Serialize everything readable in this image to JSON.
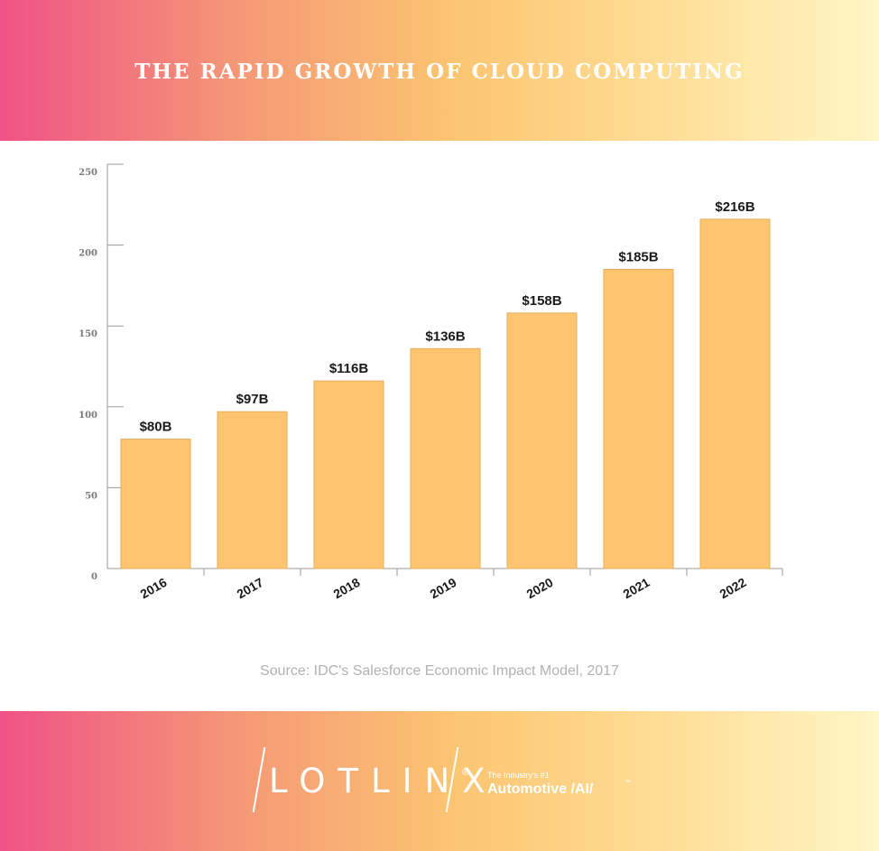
{
  "header": {
    "title": "THE RAPID GROWTH OF CLOUD COMPUTING"
  },
  "chart_data": {
    "type": "bar",
    "categories": [
      "2016",
      "2017",
      "2018",
      "2019",
      "2020",
      "2021",
      "2022"
    ],
    "values": [
      80,
      97,
      116,
      136,
      158,
      185,
      216
    ],
    "data_labels": [
      "$80B",
      "$97B",
      "$116B",
      "$136B",
      "$158B",
      "$185B",
      "$216B"
    ],
    "yticks": [
      0,
      50,
      100,
      150,
      200,
      250
    ],
    "ylim": [
      0,
      250
    ],
    "bar_color": "#fec570",
    "bar_stroke": "#e8ac5a",
    "grid": false
  },
  "footer": {
    "source": "Source: IDC's Salesforce Economic Impact Model, 2017",
    "logo_text": "LOTLINX",
    "registered": "®",
    "tagline_small": "The Industry's #1",
    "tagline_big": "Automotive /AI/",
    "trademark": "™"
  },
  "colors": {
    "gradient_start": "#ef5286",
    "gradient_mid": "#fcc571",
    "gradient_end": "#fef6c6"
  }
}
